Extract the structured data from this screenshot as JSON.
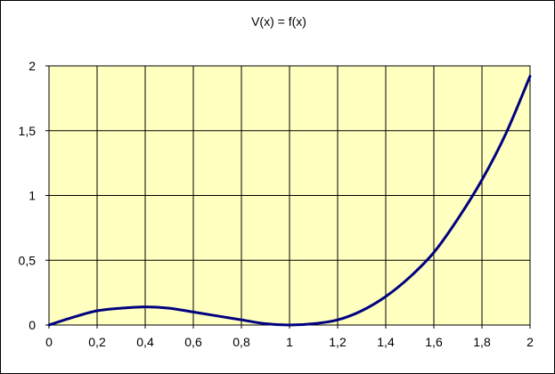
{
  "chart_data": {
    "type": "line",
    "title": "V(x) = f(x)",
    "xlabel": "",
    "ylabel": "",
    "xlim": [
      0,
      2
    ],
    "ylim": [
      0,
      2
    ],
    "x_ticks": [
      "0",
      "0,2",
      "0,4",
      "0,6",
      "0,8",
      "1",
      "1,2",
      "1,4",
      "1,6",
      "1,8",
      "2"
    ],
    "y_ticks": [
      "0",
      "0,5",
      "1",
      "1,5",
      "2"
    ],
    "grid": true,
    "colors": {
      "plot_background": "#ffffc0",
      "line": "#000080",
      "grid": "#000000"
    },
    "series": [
      {
        "x": [
          0,
          0.1,
          0.2,
          0.3,
          0.4,
          0.5,
          0.6,
          0.7,
          0.8,
          0.9,
          1.0,
          1.1,
          1.2,
          1.3,
          1.4,
          1.5,
          1.6,
          1.7,
          1.8,
          1.9,
          2.0
        ],
        "y": [
          0,
          0.06,
          0.11,
          0.13,
          0.14,
          0.13,
          0.1,
          0.07,
          0.04,
          0.01,
          0.0,
          0.01,
          0.04,
          0.11,
          0.22,
          0.37,
          0.56,
          0.82,
          1.12,
          1.48,
          1.92
        ]
      }
    ]
  }
}
